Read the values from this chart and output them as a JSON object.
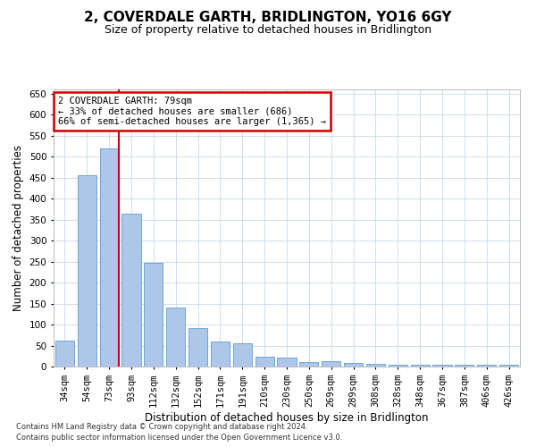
{
  "title": "2, COVERDALE GARTH, BRIDLINGTON, YO16 6GY",
  "subtitle": "Size of property relative to detached houses in Bridlington",
  "xlabel": "Distribution of detached houses by size in Bridlington",
  "ylabel": "Number of detached properties",
  "footnote1": "Contains HM Land Registry data © Crown copyright and database right 2024.",
  "footnote2": "Contains public sector information licensed under the Open Government Licence v3.0.",
  "bar_labels": [
    "34sqm",
    "54sqm",
    "73sqm",
    "93sqm",
    "112sqm",
    "132sqm",
    "152sqm",
    "171sqm",
    "191sqm",
    "210sqm",
    "230sqm",
    "250sqm",
    "269sqm",
    "289sqm",
    "308sqm",
    "328sqm",
    "348sqm",
    "367sqm",
    "387sqm",
    "406sqm",
    "426sqm"
  ],
  "bar_values": [
    62,
    455,
    520,
    365,
    248,
    140,
    92,
    60,
    55,
    23,
    22,
    10,
    12,
    8,
    6,
    5,
    5,
    5,
    5,
    5,
    5
  ],
  "bar_color": "#aec6e8",
  "bar_edge_color": "#5a9fd4",
  "vline_x_index": 2,
  "vline_color": "#cc0000",
  "annotation_text": "2 COVERDALE GARTH: 79sqm\n← 33% of detached houses are smaller (686)\n66% of semi-detached houses are larger (1,365) →",
  "annotation_box_color": "#cc0000",
  "annotation_text_color": "#000000",
  "ylim": [
    0,
    660
  ],
  "yticks": [
    0,
    50,
    100,
    150,
    200,
    250,
    300,
    350,
    400,
    450,
    500,
    550,
    600,
    650
  ],
  "background_color": "#ffffff",
  "grid_color": "#c8d8e8",
  "title_fontsize": 11,
  "subtitle_fontsize": 9,
  "tick_fontsize": 7.5,
  "xlabel_fontsize": 8.5,
  "ylabel_fontsize": 8.5
}
